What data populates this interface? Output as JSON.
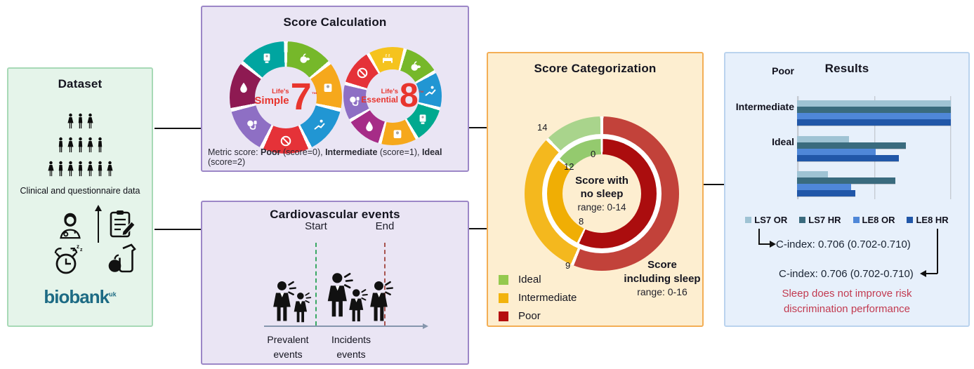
{
  "panels": {
    "dataset": {
      "title": "Dataset",
      "caption": "Clinical and questionnaire data",
      "crowd_rows": [
        3,
        5,
        7
      ],
      "logo_text": "biobank",
      "logo_sup": "uk",
      "colors": {
        "bg": "#e5f4ea",
        "border": "#a7d9b6",
        "logo": "#1d6b84"
      }
    },
    "score_calculation": {
      "title": "Score Calculation",
      "note_parts": [
        {
          "text": "Metric score: ",
          "bold": false
        },
        {
          "text": "Poor",
          "bold": true
        },
        {
          "text": " (score=0), ",
          "bold": false
        },
        {
          "text": "Intermediate",
          "bold": true
        },
        {
          "text": " (score=1), ",
          "bold": false
        },
        {
          "text": "Ideal",
          "bold": true
        },
        {
          "text": " (score=2)",
          "bold": false
        }
      ],
      "ls7": {
        "brand_top": "Life's",
        "brand_main": "Simple",
        "number": "7",
        "tm": "™",
        "start_deg": 0,
        "segments": [
          {
            "color": "#76b82a",
            "icon": "food"
          },
          {
            "color": "#f6a81c",
            "icon": "scale"
          },
          {
            "color": "#2196d3",
            "icon": "activity"
          },
          {
            "color": "#e53238",
            "icon": "ban"
          },
          {
            "color": "#8e6fc4",
            "icon": "bp"
          },
          {
            "color": "#8e1a52",
            "icon": "drop"
          },
          {
            "color": "#00a5a0",
            "icon": "monitor"
          }
        ]
      },
      "le8": {
        "brand_top": "Life's",
        "brand_main": "Essential",
        "number": "8",
        "tm": "™",
        "start_deg": -30,
        "segments": [
          {
            "color": "#f5c31d",
            "icon": "bed"
          },
          {
            "color": "#76b82a",
            "icon": "food"
          },
          {
            "color": "#2196d3",
            "icon": "activity"
          },
          {
            "color": "#00a98f",
            "icon": "monitor"
          },
          {
            "color": "#f6a81c",
            "icon": "scale"
          },
          {
            "color": "#a62c87",
            "icon": "drop"
          },
          {
            "color": "#8e6fc4",
            "icon": "bp"
          },
          {
            "color": "#e53238",
            "icon": "ban"
          }
        ]
      },
      "accent_red": "#e8352e"
    },
    "cardio": {
      "title": "Cardiovascular events",
      "start_label": "Start",
      "end_label": "End",
      "prevalent_label_1": "Prevalent",
      "prevalent_label_2": "events",
      "incident_label_1": "Incidents",
      "incident_label_2": "events",
      "persons_prevalent": 2,
      "persons_incident": 3,
      "colors": {
        "start_line": "#3aa864",
        "end_line": "#a8544f",
        "timeline": "#8696ad"
      }
    },
    "categorization": {
      "title": "Score Categorization",
      "center_label_1": "Score with",
      "center_label_2": "no sleep",
      "center_range": "range: 0-14",
      "outer_label_1": "Score",
      "outer_label_2": "including sleep",
      "outer_range": "range: 0-16",
      "ticks": {
        "t0": "0",
        "t8": "8",
        "t9": "9",
        "t12": "12",
        "t14": "14"
      },
      "legend": [
        {
          "label": "Ideal",
          "color": "#94c94e"
        },
        {
          "label": "Intermediate",
          "color": "#f2b30d"
        },
        {
          "label": "Poor",
          "color": "#b50f0f"
        }
      ],
      "colors": {
        "outer": {
          "Poor": "#c2423a",
          "Intermediate": "#f4b81e",
          "Ideal": "#a9d48c"
        },
        "inner": {
          "Poor": "#ab0d0e",
          "Intermediate": "#f0ae04",
          "Ideal": "#94ca6e"
        }
      }
    },
    "results": {
      "title": "Results",
      "cindex_ls7": "C-index: 0.706 (0.702-0.710)",
      "cindex_le8": "C-index: 0.706 (0.702-0.710)",
      "conclusion_1": "Sleep does not improve risk",
      "conclusion_2": "discrimination performance",
      "colors": {
        "conclusion": "#c23a50",
        "grid": "#c6cbd2"
      }
    }
  },
  "chart_data": [
    {
      "type": "donut",
      "title": "Score Categorization",
      "rings": [
        {
          "name": "Score including sleep",
          "position": "outer",
          "range": [
            0,
            16
          ],
          "segments": [
            {
              "label": "Poor",
              "from": 0,
              "to": 9
            },
            {
              "label": "Intermediate",
              "from": 9,
              "to": 14
            },
            {
              "label": "Ideal",
              "from": 14,
              "to": 16
            }
          ]
        },
        {
          "name": "Score with no sleep",
          "position": "inner",
          "range": [
            0,
            14
          ],
          "segments": [
            {
              "label": "Poor",
              "from": 0,
              "to": 8
            },
            {
              "label": "Intermediate",
              "from": 8,
              "to": 12
            },
            {
              "label": "Ideal",
              "from": 12,
              "to": 14
            }
          ]
        }
      ],
      "tick_labels": {
        "outer": [
          9,
          14
        ],
        "inner": [
          0,
          8,
          12
        ]
      },
      "legend": [
        "Ideal",
        "Intermediate",
        "Poor"
      ],
      "legend_position": "bottom-left"
    },
    {
      "type": "bar",
      "orientation": "horizontal",
      "title": "Results",
      "categories": [
        "Poor",
        "Intermediate",
        "Ideal"
      ],
      "series": [
        {
          "name": "LS7 OR",
          "color": "#9fc3d4",
          "values": [
            1.0,
            0.34,
            0.2
          ]
        },
        {
          "name": "LS7 HR",
          "color": "#3a6b7e",
          "values": [
            1.0,
            0.71,
            0.64
          ]
        },
        {
          "name": "LE8 OR",
          "color": "#4f87d8",
          "values": [
            1.0,
            0.51,
            0.35
          ]
        },
        {
          "name": "LE8 HR",
          "color": "#2157a8",
          "values": [
            1.0,
            0.66,
            0.38
          ]
        }
      ],
      "xlim": [
        0,
        1.0
      ],
      "gridlines": [
        0,
        0.5,
        1.0
      ],
      "grid": true,
      "legend_position": "bottom"
    }
  ]
}
